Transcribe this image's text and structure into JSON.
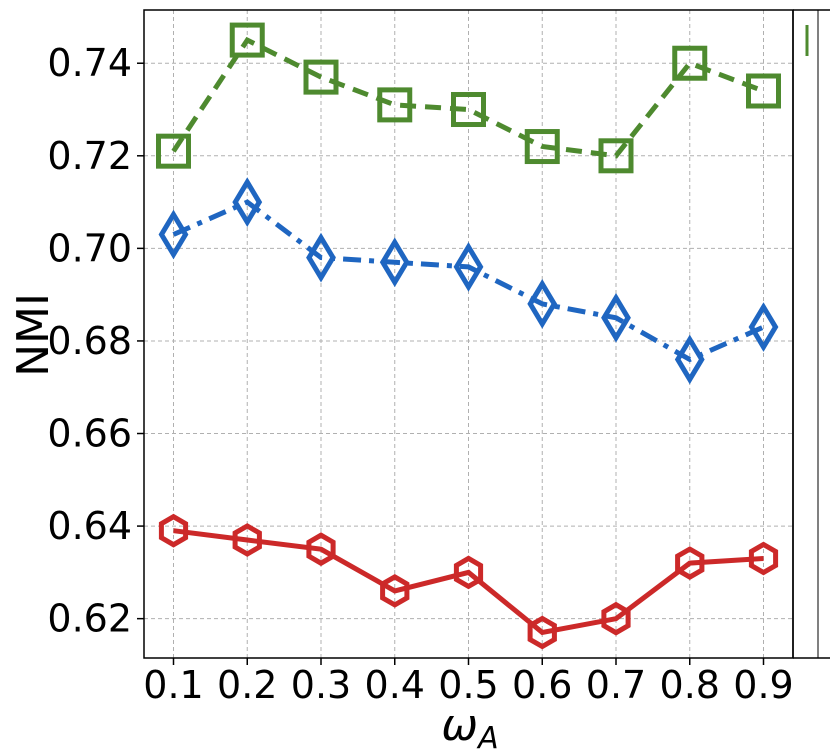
{
  "chart_data": {
    "type": "line",
    "xlabel": "ω_A",
    "xlabel_main": "ω",
    "xlabel_sub": "A",
    "ylabel": "NMI",
    "x": [
      0.1,
      0.2,
      0.3,
      0.4,
      0.5,
      0.6,
      0.7,
      0.8,
      0.9
    ],
    "xticks": [
      "0.1",
      "0.2",
      "0.3",
      "0.4",
      "0.5",
      "0.6",
      "0.7",
      "0.8",
      "0.9"
    ],
    "yticks": [
      "0.62",
      "0.64",
      "0.66",
      "0.68",
      "0.70",
      "0.72",
      "0.74"
    ],
    "ytick_values": [
      0.62,
      0.64,
      0.66,
      0.68,
      0.7,
      0.72,
      0.74
    ],
    "xlim": [
      0.06,
      0.94
    ],
    "ylim": [
      0.6115,
      0.7515
    ],
    "grid": true,
    "series": [
      {
        "color": "#4e8a2f",
        "marker": "square",
        "linestyle": "dashed",
        "values": [
          0.721,
          0.745,
          0.737,
          0.731,
          0.73,
          0.722,
          0.72,
          0.74,
          0.734
        ]
      },
      {
        "color": "#1f66c1",
        "marker": "diamond",
        "linestyle": "dashdot",
        "values": [
          0.703,
          0.71,
          0.698,
          0.697,
          0.696,
          0.688,
          0.685,
          0.676,
          0.683
        ]
      },
      {
        "color": "#cc2929",
        "marker": "hexagon",
        "linestyle": "solid",
        "values": [
          0.639,
          0.637,
          0.635,
          0.626,
          0.63,
          0.617,
          0.62,
          0.632,
          0.633
        ]
      }
    ]
  }
}
